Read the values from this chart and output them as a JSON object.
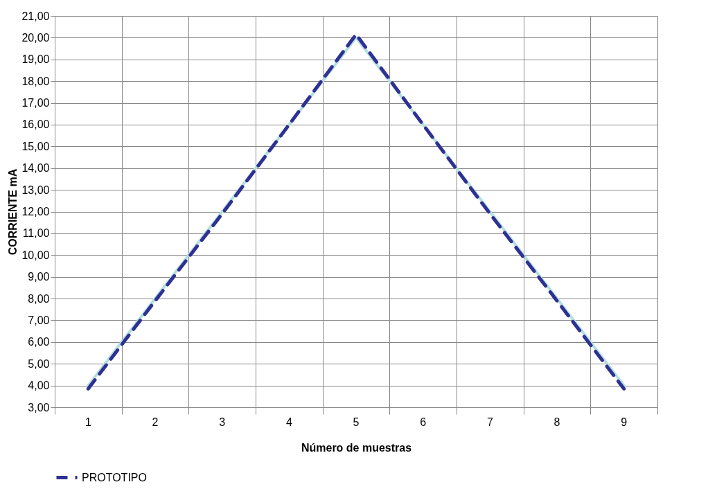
{
  "chart_data": {
    "type": "line",
    "xlabel": "Número de muestras",
    "ylabel": "CORRIENTE mA",
    "categories": [
      "1",
      "2",
      "3",
      "4",
      "5",
      "6",
      "7",
      "8",
      "9"
    ],
    "series": [
      {
        "color": "#b4dfe0",
        "line_style": "solid",
        "values": [
          4.0,
          8.0,
          12.0,
          16.0,
          20.0,
          16.0,
          12.0,
          8.0,
          4.0
        ]
      },
      {
        "name": "PROTOTIPO",
        "color": "#2e3192",
        "line_style": "dashed",
        "values": [
          3.85,
          7.9,
          11.9,
          16.0,
          20.15,
          16.0,
          11.9,
          7.9,
          3.85
        ]
      }
    ],
    "ylim": [
      3,
      21
    ],
    "yticks": [
      {
        "value": 3,
        "label": "3,00"
      },
      {
        "value": 4,
        "label": "4,00"
      },
      {
        "value": 5,
        "label": "5,00"
      },
      {
        "value": 6,
        "label": "6,00"
      },
      {
        "value": 7,
        "label": "7,00"
      },
      {
        "value": 8,
        "label": "8,00"
      },
      {
        "value": 9,
        "label": "9,00"
      },
      {
        "value": 10,
        "label": "10,00"
      },
      {
        "value": 11,
        "label": "11,00"
      },
      {
        "value": 12,
        "label": "12,00"
      },
      {
        "value": 13,
        "label": "13,00"
      },
      {
        "value": 14,
        "label": "14,00"
      },
      {
        "value": 15,
        "label": "15,00"
      },
      {
        "value": 16,
        "label": "16,00"
      },
      {
        "value": 17,
        "label": "17,00"
      },
      {
        "value": 18,
        "label": "18,00"
      },
      {
        "value": 19,
        "label": "19,00"
      },
      {
        "value": 20,
        "label": "20,00"
      },
      {
        "value": 21,
        "label": "21,00"
      }
    ],
    "grid": true,
    "legend": "bottom",
    "marker": "none"
  }
}
